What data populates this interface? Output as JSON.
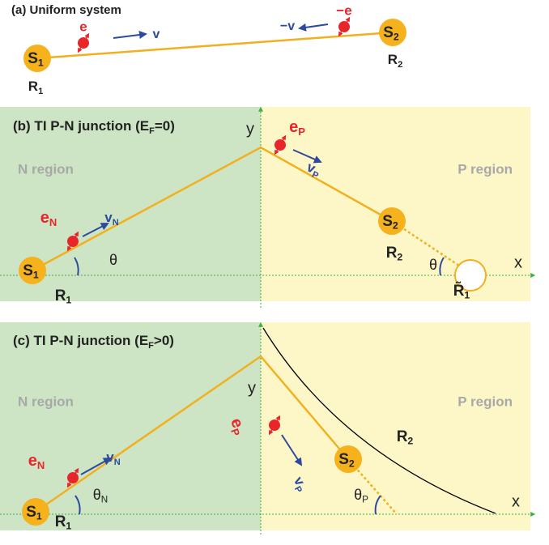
{
  "panel_a": {
    "title": "(a) Uniform system",
    "electron_left": "e",
    "velocity_left": "v",
    "electron_right": "−e",
    "velocity_right": "−v",
    "site_1": {
      "label": "S",
      "sub": "1"
    },
    "site_2": {
      "label": "S",
      "sub": "2"
    },
    "position_1": {
      "label": "R",
      "sub": "1"
    },
    "position_2": {
      "label": "R",
      "sub": "2"
    }
  },
  "panel_b": {
    "title": {
      "label": "(b) TI P-N junction (E",
      "sub": "F",
      "tail": "=0)"
    },
    "n_region": "N region",
    "p_region": "P region",
    "axis_y": "y",
    "axis_x": "x",
    "electron_p": {
      "label": "e",
      "sub": "P"
    },
    "velocity_p": {
      "label": "v",
      "sub": "P"
    },
    "electron_n": {
      "label": "e",
      "sub": "N"
    },
    "velocity_n": {
      "label": "v",
      "sub": "N"
    },
    "angle_left": "θ",
    "angle_right": "θ",
    "site_1": {
      "label": "S",
      "sub": "1"
    },
    "site_2": {
      "label": "S",
      "sub": "2"
    },
    "position_1": {
      "label": "R",
      "sub": "1"
    },
    "position_2": {
      "label": "R",
      "sub": "2"
    },
    "image_position": {
      "label": "R̃",
      "sub": "1"
    }
  },
  "panel_c": {
    "title": {
      "label": "(c) TI P-N junction (E",
      "sub": "F",
      "tail": ">0)"
    },
    "n_region": "N region",
    "p_region": "P region",
    "axis_y": "y",
    "axis_x": "x",
    "electron_p": {
      "label": "e",
      "sub": "P"
    },
    "velocity_p": {
      "label": "v",
      "sub": "P"
    },
    "electron_n": {
      "label": "e",
      "sub": "N"
    },
    "velocity_n": {
      "label": "v",
      "sub": "N"
    },
    "angle_n": {
      "label": "θ",
      "sub": "N"
    },
    "angle_p": {
      "label": "θ",
      "sub": "P"
    },
    "site_1": {
      "label": "S",
      "sub": "1"
    },
    "site_2": {
      "label": "S",
      "sub": "2"
    },
    "position_1": {
      "label": "R",
      "sub": "1"
    },
    "position_2": {
      "label": "R",
      "sub": "2"
    }
  }
}
